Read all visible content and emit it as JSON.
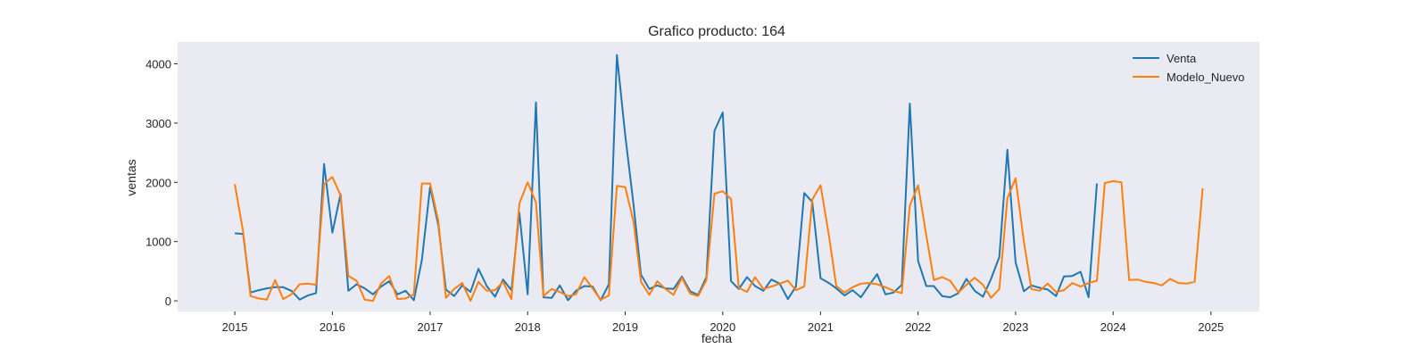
{
  "chart_data": {
    "type": "line",
    "title": "Grafico producto: 164",
    "xlabel": "fecha",
    "ylabel": "ventas",
    "x_start": "2015-01",
    "x_interval": "monthly",
    "xlim": [
      "2014-06-01",
      "2025-07-01"
    ],
    "ylim": [
      -180,
      4370
    ],
    "xticks": [
      "2015",
      "2016",
      "2017",
      "2018",
      "2019",
      "2020",
      "2021",
      "2022",
      "2023",
      "2024",
      "2025"
    ],
    "yticks": [
      0,
      1000,
      2000,
      3000,
      4000
    ],
    "grid": false,
    "background": "#eaeaf2",
    "legend_position": "top-right",
    "series": [
      {
        "name": "Venta",
        "color": "#1f77b4",
        "values": [
          1140,
          1130,
          140,
          180,
          210,
          230,
          230,
          170,
          20,
          90,
          130,
          2310,
          1150,
          1800,
          170,
          280,
          210,
          110,
          240,
          330,
          110,
          170,
          10,
          690,
          1920,
          1270,
          190,
          80,
          260,
          150,
          540,
          250,
          70,
          360,
          180,
          1490,
          110,
          3350,
          60,
          50,
          260,
          10,
          170,
          250,
          240,
          10,
          280,
          4150,
          2800,
          1630,
          440,
          200,
          260,
          210,
          200,
          410,
          160,
          100,
          400,
          2870,
          3180,
          330,
          200,
          400,
          250,
          170,
          360,
          290,
          30,
          240,
          1820,
          1670,
          380,
          300,
          210,
          90,
          180,
          60,
          260,
          450,
          110,
          140,
          270,
          3330,
          670,
          250,
          250,
          80,
          60,
          130,
          370,
          170,
          70,
          370,
          740,
          2550,
          650,
          160,
          260,
          220,
          190,
          80,
          410,
          420,
          490,
          60,
          1980
        ]
      },
      {
        "name": "Modelo_Nuevo",
        "color": "#ff7f0e",
        "values": [
          1970,
          1170,
          80,
          40,
          20,
          350,
          30,
          110,
          280,
          290,
          270,
          1970,
          2090,
          1780,
          420,
          340,
          20,
          0,
          290,
          420,
          30,
          40,
          110,
          1980,
          1980,
          1340,
          50,
          200,
          300,
          0,
          320,
          170,
          180,
          320,
          30,
          1640,
          2000,
          1660,
          80,
          200,
          150,
          80,
          110,
          400,
          210,
          20,
          90,
          1940,
          1920,
          1340,
          320,
          100,
          330,
          200,
          100,
          390,
          120,
          80,
          350,
          1810,
          1850,
          1720,
          220,
          150,
          400,
          200,
          240,
          290,
          340,
          180,
          240,
          1710,
          1950,
          1110,
          250,
          140,
          230,
          290,
          300,
          280,
          230,
          170,
          130,
          1610,
          1950,
          1100,
          350,
          400,
          340,
          140,
          270,
          390,
          270,
          50,
          200,
          1730,
          2070,
          1000,
          200,
          170,
          290,
          150,
          180,
          300,
          240,
          300,
          340,
          1990,
          2020,
          2000,
          350,
          360,
          320,
          300,
          260,
          370,
          300,
          290,
          320,
          1900
        ]
      }
    ]
  }
}
